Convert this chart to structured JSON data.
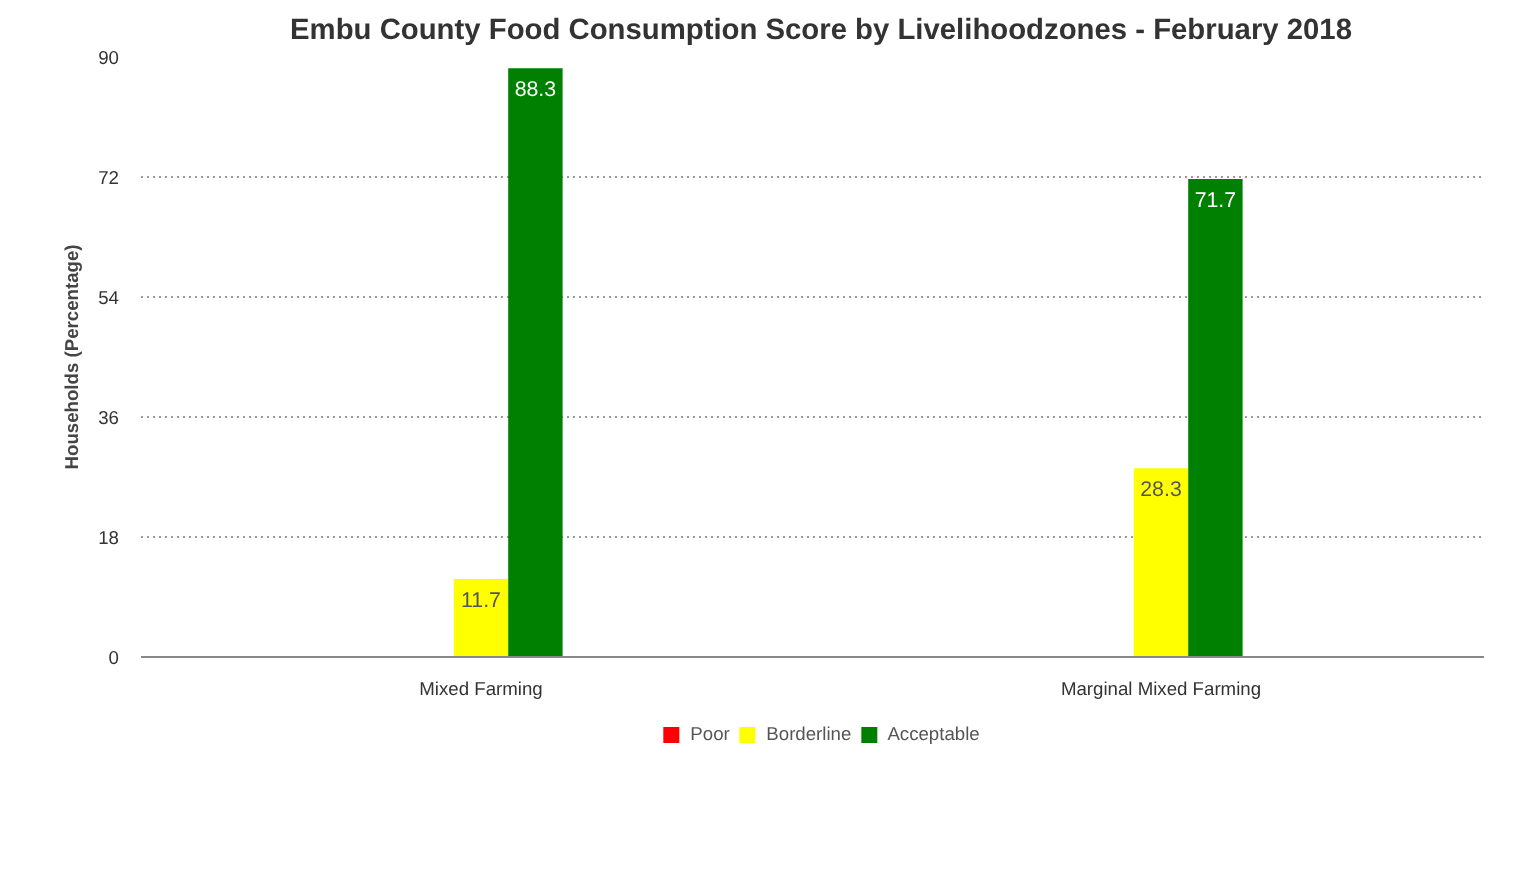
{
  "chart_data": {
    "type": "bar",
    "title": "Embu County Food Consumption Score by Livelihoodzones - February 2018",
    "ylabel": "Households (Percentage)",
    "categories": [
      "Mixed Farming",
      "Marginal Mixed Farming"
    ],
    "series": [
      {
        "name": "Poor",
        "color": "#ff0000",
        "values": [
          0,
          0
        ],
        "value_labels": [
          null,
          null
        ]
      },
      {
        "name": "Borderline",
        "color": "#ffff00",
        "values": [
          11.7,
          28.3
        ],
        "value_labels": [
          "11.7",
          "28.3"
        ]
      },
      {
        "name": "Acceptable",
        "color": "#008000",
        "values": [
          88.3,
          71.7
        ],
        "value_labels": [
          "88.3",
          "71.7"
        ]
      }
    ],
    "ylim": [
      0,
      90
    ],
    "yticks": [
      0,
      18,
      36,
      54,
      72,
      90
    ],
    "grid": "y",
    "legend": "bottom"
  }
}
